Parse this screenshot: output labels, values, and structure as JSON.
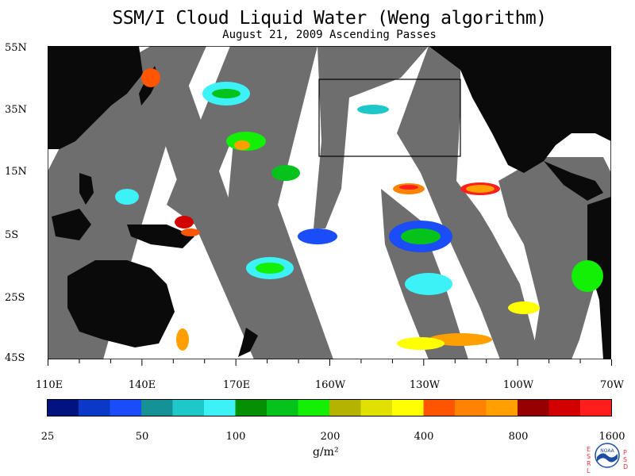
{
  "chart_data": {
    "type": "heatmap",
    "title": "SSM/I Cloud Liquid Water (Weng algorithm)",
    "subtitle": "August 21, 2009  Ascending Passes",
    "lat_ticks": [
      "55N",
      "35N",
      "15N",
      "5S",
      "25S",
      "45S"
    ],
    "lon_ticks": [
      "110E",
      "140E",
      "170E",
      "160W",
      "130W",
      "100W",
      "70W"
    ],
    "lat_range": [
      -45,
      55
    ],
    "lon_range": [
      110,
      290
    ],
    "colorbar": {
      "units": "g/m²",
      "tick_labels": [
        "25",
        "50",
        "100",
        "200",
        "400",
        "800",
        "1600"
      ],
      "colors": [
        "#00137e",
        "#0a39c8",
        "#1a4cf7",
        "#159296",
        "#1ec8c8",
        "#3cf2f7",
        "#039103",
        "#05c31b",
        "#14f005",
        "#b4b400",
        "#e1e100",
        "#ffff00",
        "#ff5500",
        "#ff8200",
        "#ffa000",
        "#960000",
        "#d20000",
        "#ff1e1e"
      ]
    },
    "legend_location": "bottom",
    "grid": false
  },
  "colors": {
    "land": "#0a0a0a",
    "no_data": "#6e6e6e",
    "clear": "#ffffff",
    "box": "#000000"
  },
  "logo": {
    "left_letters": "ESRL",
    "right_letters": "PSD",
    "center_text": "NOAA"
  }
}
